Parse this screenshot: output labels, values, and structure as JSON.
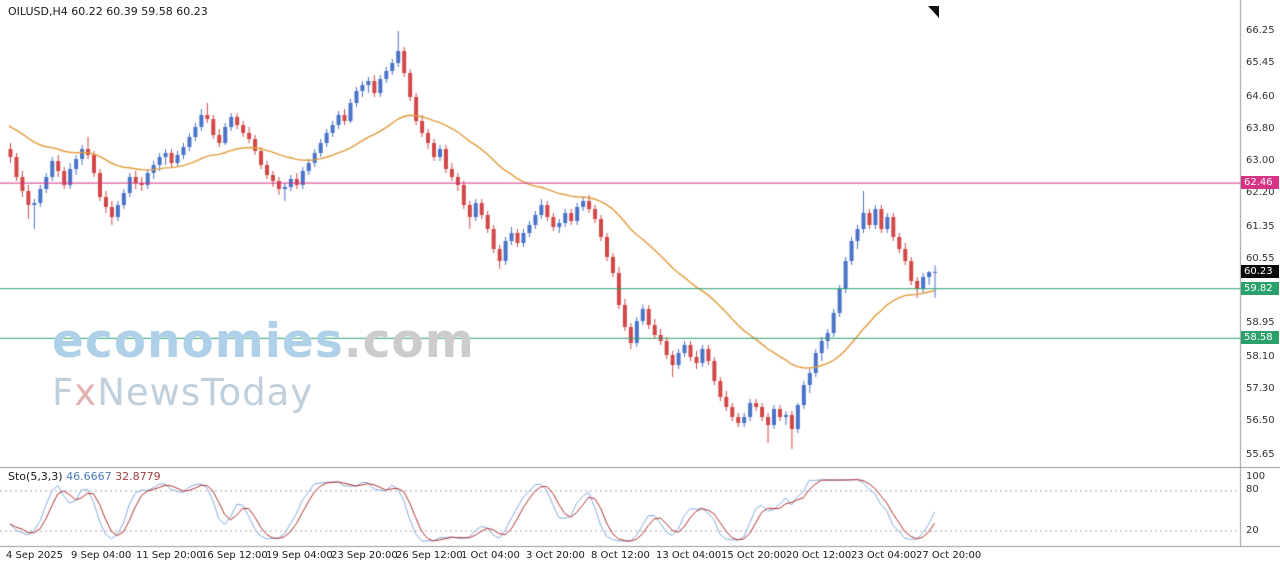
{
  "quote_bar": {
    "text": "OILUSD,H4 60.22 60.39 59.58 60.23"
  },
  "watermark": {
    "line1_main": "economies",
    "line1_suffix": ".com",
    "line2_f": "F",
    "line2_x": "x",
    "line2_rest": "NewsToday"
  },
  "colors": {
    "bull": "#4a74c9",
    "bear": "#d24848",
    "ma": "#e09c3c",
    "sto_k": "#86aede",
    "sto_d": "#b23535",
    "axis_text": "#333333",
    "separator": "#9a9a9a",
    "dotted_level": "#aaaaaa",
    "magenta_level": "#d63384",
    "green_level": "#2aa06a",
    "current_tag": "#0a0a0a"
  },
  "chart_data": {
    "type": "candlestick",
    "symbol": "OILUSD",
    "timeframe": "H4",
    "ohlc_display": {
      "open": "60.22",
      "high": "60.39",
      "low": "59.58",
      "close": "60.23"
    },
    "y_ticks": [
      "66.25",
      "65.45",
      "64.60",
      "63.80",
      "63.00",
      "62.20",
      "61.35",
      "60.55",
      "59.75",
      "58.95",
      "58.10",
      "57.30",
      "56.50",
      "55.65"
    ],
    "x_labels": [
      "4 Sep 2025",
      "9 Sep 04:00",
      "11 Sep 20:00",
      "16 Sep 12:00",
      "19 Sep 04:00",
      "23 Sep 20:00",
      "26 Sep 12:00",
      "1 Oct 04:00",
      "3 Oct 20:00",
      "8 Oct 12:00",
      "13 Oct 04:00",
      "15 Oct 20:00",
      "20 Oct 12:00",
      "23 Oct 04:00",
      "27 Oct 20:00"
    ],
    "levels": [
      {
        "value": 62.46,
        "label": "62.46",
        "color": "#d63384"
      },
      {
        "value": 59.82,
        "label": "59.82",
        "color": "#2aa06a"
      },
      {
        "value": 58.58,
        "label": "58.58",
        "color": "#2aa06a"
      }
    ],
    "current_price": {
      "value": 60.23,
      "label": "60.23",
      "color": "#0a0a0a"
    },
    "ma": {
      "type": "ema",
      "period": 32,
      "seed": 63.9
    },
    "stochastic": {
      "label": "Sto(5,3,3)",
      "k_value": "46.6667",
      "d_value": "32.8779",
      "k_period": 5,
      "slowing": 3,
      "d_period": 3,
      "levels": [
        80,
        20
      ],
      "scale_labels": [
        {
          "v": 100,
          "t": "100"
        },
        {
          "v": 80,
          "t": "80"
        },
        {
          "v": 20,
          "t": "20"
        }
      ]
    },
    "candles": [
      [
        63.3,
        63.45,
        62.95,
        63.1
      ],
      [
        63.1,
        63.2,
        62.5,
        62.6
      ],
      [
        62.6,
        62.75,
        62.1,
        62.25
      ],
      [
        62.25,
        62.4,
        61.55,
        61.9
      ],
      [
        61.9,
        62.05,
        61.3,
        61.95
      ],
      [
        61.95,
        62.4,
        61.85,
        62.3
      ],
      [
        62.3,
        62.7,
        62.2,
        62.6
      ],
      [
        62.6,
        63.1,
        62.5,
        63.0
      ],
      [
        63.0,
        63.15,
        62.6,
        62.75
      ],
      [
        62.75,
        62.85,
        62.3,
        62.4
      ],
      [
        62.4,
        62.95,
        62.3,
        62.8
      ],
      [
        62.8,
        63.15,
        62.65,
        63.05
      ],
      [
        63.05,
        63.4,
        62.9,
        63.3
      ],
      [
        63.3,
        63.6,
        63.05,
        63.15
      ],
      [
        63.15,
        63.25,
        62.6,
        62.7
      ],
      [
        62.7,
        62.8,
        62.0,
        62.1
      ],
      [
        62.1,
        62.25,
        61.7,
        61.85
      ],
      [
        61.85,
        62.0,
        61.4,
        61.6
      ],
      [
        61.6,
        62.0,
        61.5,
        61.9
      ],
      [
        61.9,
        62.3,
        61.8,
        62.2
      ],
      [
        62.2,
        62.7,
        62.1,
        62.6
      ],
      [
        62.6,
        62.75,
        62.3,
        62.45
      ],
      [
        62.45,
        62.6,
        62.25,
        62.4
      ],
      [
        62.4,
        62.8,
        62.3,
        62.7
      ],
      [
        62.7,
        63.0,
        62.55,
        62.9
      ],
      [
        62.9,
        63.2,
        62.75,
        63.1
      ],
      [
        63.1,
        63.3,
        62.9,
        63.2
      ],
      [
        63.2,
        63.3,
        62.85,
        62.95
      ],
      [
        62.95,
        63.25,
        62.85,
        63.15
      ],
      [
        63.15,
        63.45,
        63.05,
        63.35
      ],
      [
        63.35,
        63.7,
        63.25,
        63.6
      ],
      [
        63.6,
        63.95,
        63.5,
        63.85
      ],
      [
        63.85,
        64.3,
        63.75,
        64.15
      ],
      [
        64.15,
        64.45,
        63.95,
        64.05
      ],
      [
        64.05,
        64.15,
        63.55,
        63.65
      ],
      [
        63.65,
        63.8,
        63.35,
        63.45
      ],
      [
        63.45,
        63.95,
        63.4,
        63.85
      ],
      [
        63.85,
        64.2,
        63.75,
        64.1
      ],
      [
        64.1,
        64.2,
        63.8,
        63.9
      ],
      [
        63.9,
        64.0,
        63.6,
        63.7
      ],
      [
        63.7,
        63.85,
        63.45,
        63.55
      ],
      [
        63.55,
        63.65,
        63.15,
        63.25
      ],
      [
        63.25,
        63.35,
        62.8,
        62.9
      ],
      [
        62.9,
        63.0,
        62.55,
        62.65
      ],
      [
        62.65,
        62.75,
        62.35,
        62.5
      ],
      [
        62.5,
        62.6,
        62.15,
        62.3
      ],
      [
        62.3,
        62.45,
        62.0,
        62.35
      ],
      [
        62.35,
        62.65,
        62.25,
        62.55
      ],
      [
        62.55,
        62.7,
        62.3,
        62.4
      ],
      [
        62.4,
        62.85,
        62.3,
        62.75
      ],
      [
        62.75,
        63.05,
        62.65,
        62.95
      ],
      [
        62.95,
        63.3,
        62.85,
        63.2
      ],
      [
        63.2,
        63.55,
        63.1,
        63.45
      ],
      [
        63.45,
        63.8,
        63.35,
        63.7
      ],
      [
        63.7,
        64.0,
        63.6,
        63.9
      ],
      [
        63.9,
        64.25,
        63.8,
        64.15
      ],
      [
        64.15,
        64.3,
        63.9,
        64.0
      ],
      [
        64.0,
        64.55,
        63.95,
        64.45
      ],
      [
        64.45,
        64.85,
        64.35,
        64.75
      ],
      [
        64.75,
        65.0,
        64.6,
        64.9
      ],
      [
        64.9,
        65.1,
        64.7,
        65.0
      ],
      [
        65.0,
        65.15,
        64.6,
        64.7
      ],
      [
        64.7,
        65.15,
        64.6,
        65.05
      ],
      [
        65.05,
        65.35,
        64.95,
        65.25
      ],
      [
        65.25,
        65.55,
        65.15,
        65.45
      ],
      [
        65.45,
        66.25,
        65.35,
        65.75
      ],
      [
        65.75,
        65.85,
        65.1,
        65.2
      ],
      [
        65.2,
        65.3,
        64.5,
        64.6
      ],
      [
        64.6,
        64.7,
        63.9,
        64.0
      ],
      [
        64.0,
        64.15,
        63.6,
        63.7
      ],
      [
        63.7,
        63.8,
        63.3,
        63.45
      ],
      [
        63.45,
        63.55,
        63.0,
        63.1
      ],
      [
        63.1,
        63.4,
        63.0,
        63.3
      ],
      [
        63.3,
        63.4,
        62.7,
        62.8
      ],
      [
        62.8,
        62.95,
        62.5,
        62.6
      ],
      [
        62.6,
        62.7,
        62.25,
        62.4
      ],
      [
        62.4,
        62.5,
        61.8,
        61.9
      ],
      [
        61.9,
        62.0,
        61.3,
        61.6
      ],
      [
        61.6,
        62.05,
        61.5,
        61.95
      ],
      [
        61.95,
        62.05,
        61.55,
        61.65
      ],
      [
        61.65,
        61.75,
        61.2,
        61.3
      ],
      [
        61.3,
        61.4,
        60.7,
        60.8
      ],
      [
        60.8,
        60.9,
        60.3,
        60.5
      ],
      [
        60.5,
        61.1,
        60.4,
        61.0
      ],
      [
        61.0,
        61.35,
        60.9,
        61.2
      ],
      [
        61.2,
        61.3,
        60.85,
        60.95
      ],
      [
        60.95,
        61.3,
        60.85,
        61.2
      ],
      [
        61.2,
        61.5,
        61.1,
        61.4
      ],
      [
        61.4,
        61.75,
        61.3,
        61.65
      ],
      [
        61.65,
        62.05,
        61.55,
        61.9
      ],
      [
        61.9,
        62.0,
        61.5,
        61.6
      ],
      [
        61.6,
        61.7,
        61.25,
        61.35
      ],
      [
        61.35,
        61.55,
        61.2,
        61.45
      ],
      [
        61.45,
        61.8,
        61.35,
        61.7
      ],
      [
        61.7,
        61.8,
        61.4,
        61.5
      ],
      [
        61.5,
        61.95,
        61.4,
        61.85
      ],
      [
        61.85,
        62.1,
        61.75,
        62.0
      ],
      [
        62.0,
        62.15,
        61.7,
        61.8
      ],
      [
        61.8,
        61.9,
        61.45,
        61.55
      ],
      [
        61.55,
        61.65,
        61.0,
        61.1
      ],
      [
        61.1,
        61.2,
        60.5,
        60.6
      ],
      [
        60.6,
        60.7,
        60.1,
        60.2
      ],
      [
        60.2,
        60.35,
        59.3,
        59.4
      ],
      [
        59.4,
        59.55,
        58.75,
        58.85
      ],
      [
        58.85,
        58.95,
        58.3,
        58.45
      ],
      [
        58.45,
        59.1,
        58.35,
        59.0
      ],
      [
        59.0,
        59.4,
        58.9,
        59.3
      ],
      [
        59.3,
        59.4,
        58.8,
        58.9
      ],
      [
        58.9,
        59.05,
        58.55,
        58.65
      ],
      [
        58.65,
        58.8,
        58.4,
        58.5
      ],
      [
        58.5,
        58.6,
        58.05,
        58.15
      ],
      [
        58.15,
        58.25,
        57.6,
        57.9
      ],
      [
        57.9,
        58.3,
        57.8,
        58.2
      ],
      [
        58.2,
        58.5,
        58.1,
        58.4
      ],
      [
        58.4,
        58.5,
        58.0,
        58.1
      ],
      [
        58.1,
        58.25,
        57.8,
        57.95
      ],
      [
        57.95,
        58.4,
        57.85,
        58.3
      ],
      [
        58.3,
        58.4,
        57.9,
        58.0
      ],
      [
        58.0,
        58.1,
        57.4,
        57.5
      ],
      [
        57.5,
        57.6,
        57.0,
        57.1
      ],
      [
        57.1,
        57.25,
        56.75,
        56.85
      ],
      [
        56.85,
        56.95,
        56.5,
        56.6
      ],
      [
        56.6,
        56.7,
        56.35,
        56.45
      ],
      [
        56.45,
        56.7,
        56.35,
        56.6
      ],
      [
        56.6,
        57.05,
        56.5,
        56.95
      ],
      [
        56.95,
        57.05,
        56.75,
        56.85
      ],
      [
        56.85,
        56.95,
        56.5,
        56.6
      ],
      [
        56.6,
        56.7,
        55.95,
        56.4
      ],
      [
        56.4,
        56.9,
        56.3,
        56.8
      ],
      [
        56.8,
        56.9,
        56.5,
        56.6
      ],
      [
        56.6,
        56.75,
        56.4,
        56.65
      ],
      [
        56.65,
        56.75,
        55.8,
        56.3
      ],
      [
        56.3,
        56.95,
        56.2,
        56.9
      ],
      [
        56.9,
        57.5,
        56.8,
        57.4
      ],
      [
        57.4,
        57.8,
        57.2,
        57.7
      ],
      [
        57.7,
        58.3,
        57.6,
        58.2
      ],
      [
        58.2,
        58.6,
        58.0,
        58.5
      ],
      [
        58.5,
        58.8,
        58.3,
        58.7
      ],
      [
        58.7,
        59.3,
        58.6,
        59.2
      ],
      [
        59.2,
        59.9,
        59.1,
        59.8
      ],
      [
        59.8,
        60.6,
        59.7,
        60.5
      ],
      [
        60.5,
        61.1,
        60.4,
        61.0
      ],
      [
        61.0,
        61.4,
        60.8,
        61.3
      ],
      [
        61.3,
        62.25,
        61.2,
        61.7
      ],
      [
        61.7,
        61.8,
        61.3,
        61.4
      ],
      [
        61.4,
        61.9,
        61.3,
        61.8
      ],
      [
        61.8,
        61.9,
        61.2,
        61.3
      ],
      [
        61.3,
        61.7,
        61.2,
        61.6
      ],
      [
        61.6,
        61.7,
        61.0,
        61.1
      ],
      [
        61.1,
        61.2,
        60.7,
        60.8
      ],
      [
        60.8,
        60.95,
        60.4,
        60.5
      ],
      [
        60.5,
        60.6,
        59.9,
        60.0
      ],
      [
        60.0,
        60.1,
        59.58,
        59.8
      ],
      [
        59.8,
        60.2,
        59.7,
        60.1
      ],
      [
        60.1,
        60.25,
        59.9,
        60.22
      ],
      [
        60.22,
        60.39,
        59.58,
        60.23
      ]
    ]
  }
}
